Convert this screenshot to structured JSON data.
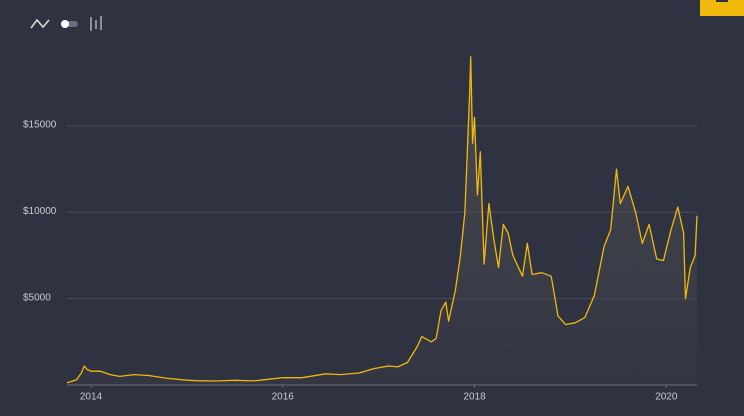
{
  "chart_data": {
    "type": "line",
    "color": "#f0b90b",
    "grid": true,
    "x": [
      2013.75,
      2013.85,
      2013.9,
      2013.93,
      2013.96,
      2014.0,
      2014.1,
      2014.2,
      2014.3,
      2014.45,
      2014.6,
      2014.8,
      2015.0,
      2015.1,
      2015.3,
      2015.5,
      2015.7,
      2015.85,
      2016.0,
      2016.2,
      2016.45,
      2016.6,
      2016.8,
      2016.95,
      2017.1,
      2017.2,
      2017.3,
      2017.4,
      2017.45,
      2017.55,
      2017.6,
      2017.65,
      2017.7,
      2017.73,
      2017.8,
      2017.85,
      2017.9,
      2017.95,
      2017.96,
      2017.98,
      2018.0,
      2018.03,
      2018.06,
      2018.1,
      2018.15,
      2018.2,
      2018.25,
      2018.3,
      2018.35,
      2018.4,
      2018.5,
      2018.55,
      2018.6,
      2018.7,
      2018.8,
      2018.87,
      2018.95,
      2019.05,
      2019.15,
      2019.25,
      2019.35,
      2019.42,
      2019.48,
      2019.52,
      2019.6,
      2019.68,
      2019.75,
      2019.82,
      2019.9,
      2019.97,
      2020.05,
      2020.12,
      2020.18,
      2020.2,
      2020.25,
      2020.3,
      2020.32
    ],
    "values": [
      130,
      300,
      700,
      1100,
      900,
      800,
      800,
      600,
      500,
      600,
      550,
      380,
      280,
      250,
      230,
      270,
      240,
      330,
      430,
      420,
      650,
      600,
      700,
      950,
      1100,
      1050,
      1300,
      2200,
      2800,
      2500,
      2700,
      4300,
      4800,
      3700,
      5500,
      7400,
      10000,
      17000,
      19000,
      14000,
      15500,
      11000,
      13500,
      7000,
      10500,
      8500,
      6800,
      9300,
      8800,
      7500,
      6300,
      8200,
      6400,
      6500,
      6300,
      4000,
      3500,
      3600,
      3900,
      5200,
      8000,
      9000,
      12500,
      10500,
      11500,
      10000,
      8200,
      9300,
      7300,
      7200,
      9000,
      10300,
      8800,
      5000,
      6800,
      7500,
      9800
    ],
    "xlim": [
      2013.75,
      2020.32
    ],
    "ylim": [
      0,
      22000
    ],
    "xticks": [
      2014,
      2016,
      2018,
      2020
    ],
    "yticks": [
      {
        "value": 5000,
        "label": "$5000"
      },
      {
        "value": 10000,
        "label": "$10000"
      },
      {
        "value": 15000,
        "label": "$15000"
      }
    ]
  }
}
